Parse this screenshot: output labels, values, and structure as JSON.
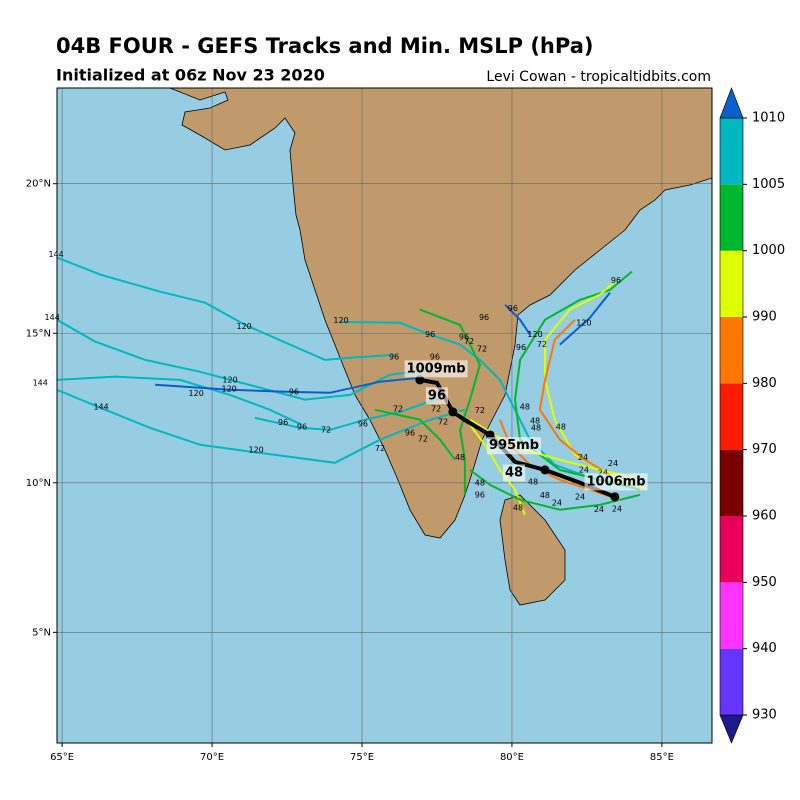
{
  "chart_data": {
    "type": "map",
    "title": "04B FOUR - GEFS Tracks and Min. MSLP (hPa)",
    "subtitle": "Initialized at 06z Nov 23 2020",
    "credit": "Levi Cowan - tropicaltidbits.com",
    "xlim": [
      64.83,
      86.67
    ],
    "ylim": [
      1.3,
      23.2
    ],
    "xticks": [
      {
        "value": 65,
        "label": "65°E"
      },
      {
        "value": 70,
        "label": "70°E"
      },
      {
        "value": 75,
        "label": "75°E"
      },
      {
        "value": 80,
        "label": "80°E"
      },
      {
        "value": 85,
        "label": "85°E"
      }
    ],
    "yticks": [
      {
        "value": 5,
        "label": "5°N"
      },
      {
        "value": 10,
        "label": "10°N"
      },
      {
        "value": 15,
        "label": "15°N"
      },
      {
        "value": 20,
        "label": "20°N"
      }
    ],
    "grid": true,
    "tracks": [
      {
        "color": "#00b8c0",
        "lon": [
          64.83,
          66.27,
          68.27,
          69.77,
          71.1,
          72.6,
          73.77,
          74.6,
          76.1
        ],
        "lat": [
          17.53,
          16.96,
          16.39,
          16.02,
          15.28,
          14.62,
          14.11,
          14.18,
          14.28
        ]
      },
      {
        "color": "#00b8c0",
        "lon": [
          64.83,
          66.1,
          67.77,
          69.6,
          71.6,
          73.1,
          74.6,
          75.93,
          77.27
        ],
        "lat": [
          15.45,
          14.72,
          14.11,
          13.71,
          13.18,
          12.78,
          12.94,
          13.61,
          13.78
        ]
      },
      {
        "color": "#00b8c0",
        "lon": [
          64.83,
          66.77,
          68.93,
          70.6,
          71.93,
          73.0
        ],
        "lat": [
          13.44,
          13.55,
          13.44,
          12.94,
          12.44,
          11.94
        ]
      },
      {
        "color": "#00b8c0",
        "lon": [
          64.83,
          66.27,
          67.93,
          69.6,
          71.6,
          74.1,
          75.6,
          77.27,
          78.43
        ],
        "lat": [
          13.11,
          12.51,
          11.84,
          11.27,
          11.0,
          10.67,
          11.44,
          12.11,
          12.44
        ]
      },
      {
        "color": "#0a5fcc",
        "lon": [
          68.1,
          70.6,
          72.6,
          73.93,
          75.6,
          76.93
        ],
        "lat": [
          13.28,
          13.11,
          13.04,
          13.01,
          13.38,
          13.51
        ]
      },
      {
        "color": "#00b8c0",
        "lon": [
          71.43,
          72.93,
          73.93,
          75.1,
          76.27,
          77.6
        ],
        "lat": [
          12.17,
          11.84,
          11.77,
          12.11,
          12.37,
          12.84
        ]
      },
      {
        "color": "#00b8c0",
        "lon": [
          74.27,
          76.27,
          77.27,
          78.27,
          78.93,
          79.6,
          80.1,
          80.6,
          81.43,
          82.6,
          83.93
        ],
        "lat": [
          15.38,
          15.35,
          14.95,
          14.62,
          14.11,
          13.44,
          12.44,
          11.44,
          10.6,
          10.17,
          9.87
        ]
      },
      {
        "color": "#00b82e",
        "lon": [
          84.0,
          83.27,
          82.27,
          81.1,
          80.27,
          80.1,
          80.27,
          81.6,
          82.93,
          84.27
        ],
        "lat": [
          17.06,
          16.45,
          16.12,
          15.45,
          14.11,
          12.78,
          11.44,
          10.43,
          10.1,
          9.77
        ]
      },
      {
        "color": "#ddff00",
        "lon": [
          83.43,
          82.93,
          81.93,
          81.1,
          81.1,
          81.43,
          82.1,
          83.27,
          84.43
        ],
        "lat": [
          16.72,
          16.29,
          15.79,
          14.78,
          13.44,
          12.11,
          10.94,
          10.27,
          9.83
        ]
      },
      {
        "color": "#ff7700",
        "lon": [
          82.1,
          81.43,
          81.1,
          80.93,
          81.6,
          82.43,
          83.27
        ],
        "lat": [
          15.45,
          14.78,
          13.44,
          12.44,
          11.44,
          10.77,
          10.27
        ]
      },
      {
        "color": "#00b82e",
        "lon": [
          76.93,
          78.27,
          78.6,
          78.93,
          78.6,
          78.27,
          78.43,
          78.43
        ],
        "lat": [
          15.79,
          15.28,
          14.62,
          13.95,
          12.78,
          11.77,
          10.77,
          9.6
        ]
      },
      {
        "color": "#ddff00",
        "lon": [
          80.43,
          80.1,
          79.6,
          79.1,
          78.6,
          78.1
        ],
        "lat": [
          8.93,
          9.77,
          10.43,
          11.27,
          11.94,
          12.44
        ]
      },
      {
        "color": "#00b82e",
        "lon": [
          84.27,
          82.93,
          81.6,
          80.27,
          79.27,
          78.6
        ],
        "lat": [
          9.6,
          9.26,
          9.1,
          9.43,
          9.93,
          10.43
        ]
      },
      {
        "color": "#ff7700",
        "lon": [
          83.6,
          82.6,
          81.6,
          80.6,
          79.93,
          79.6
        ],
        "lat": [
          9.43,
          9.77,
          10.1,
          10.6,
          11.27,
          12.11
        ]
      },
      {
        "color": "#0a5fcc",
        "lon": [
          79.77,
          80.27,
          80.6
        ],
        "lat": [
          15.95,
          15.45,
          14.95
        ]
      },
      {
        "color": "#0a5fcc",
        "lon": [
          81.6,
          82.6,
          83.27
        ],
        "lat": [
          14.62,
          15.52,
          16.36
        ]
      },
      {
        "color": "#00b82e",
        "lon": [
          75.43,
          76.93,
          77.6,
          78.1
        ],
        "lat": [
          12.44,
          12.11,
          11.44,
          10.77
        ]
      },
      {
        "color": "#ddff00",
        "lon": [
          84.1,
          82.93,
          81.6,
          80.43,
          79.43,
          78.6
        ],
        "lat": [
          10.17,
          10.43,
          10.77,
          11.1,
          11.6,
          12.11
        ]
      }
    ],
    "mean_track": {
      "color": "#000000",
      "lon": [
        83.43,
        82.27,
        81.1,
        80.1,
        79.27,
        78.43,
        78.03,
        77.5,
        76.93
      ],
      "lat": [
        9.53,
        10.0,
        10.43,
        10.7,
        11.6,
        12.1,
        12.37,
        13.34,
        13.44
      ]
    },
    "hour_labels": [
      {
        "text": 144,
        "lon": 64.8,
        "lat": 17.63
      },
      {
        "text": 144,
        "lon": 64.67,
        "lat": 15.52
      },
      {
        "text": 144,
        "lon": 64.27,
        "lat": 13.34
      },
      {
        "text": 144,
        "lon": 66.3,
        "lat": 12.54
      },
      {
        "text": 120,
        "lon": 71.07,
        "lat": 15.22
      },
      {
        "text": 120,
        "lon": 74.3,
        "lat": 15.42
      },
      {
        "text": 120,
        "lon": 70.6,
        "lat": 13.44
      },
      {
        "text": 120,
        "lon": 70.57,
        "lat": 13.14
      },
      {
        "text": 120,
        "lon": 69.47,
        "lat": 12.98
      },
      {
        "text": 120,
        "lon": 71.47,
        "lat": 11.1
      },
      {
        "text": 120,
        "lon": 80.77,
        "lat": 14.95
      },
      {
        "text": 120,
        "lon": 82.4,
        "lat": 15.35
      },
      {
        "text": 96,
        "lon": 76.07,
        "lat": 14.21
      },
      {
        "text": 96,
        "lon": 77.43,
        "lat": 14.21
      },
      {
        "text": 96,
        "lon": 77.27,
        "lat": 14.95
      },
      {
        "text": 96,
        "lon": 78.4,
        "lat": 14.88
      },
      {
        "text": 96,
        "lon": 79.07,
        "lat": 15.52
      },
      {
        "text": 96,
        "lon": 80.03,
        "lat": 15.82
      },
      {
        "text": 96,
        "lon": 83.47,
        "lat": 16.76
      },
      {
        "text": 96,
        "lon": 72.73,
        "lat": 13.04
      },
      {
        "text": 96,
        "lon": 72.37,
        "lat": 12.01
      },
      {
        "text": 96,
        "lon": 73.0,
        "lat": 11.87
      },
      {
        "text": 96,
        "lon": 75.03,
        "lat": 11.97
      },
      {
        "text": 96,
        "lon": 76.6,
        "lat": 11.67
      },
      {
        "text": 96,
        "lon": 78.93,
        "lat": 9.6
      },
      {
        "text": 96,
        "lon": 80.3,
        "lat": 14.52
      },
      {
        "text": 72,
        "lon": 78.57,
        "lat": 14.72
      },
      {
        "text": 72,
        "lon": 79.0,
        "lat": 14.48
      },
      {
        "text": 72,
        "lon": 81.0,
        "lat": 14.62
      },
      {
        "text": 72,
        "lon": 73.8,
        "lat": 11.77
      },
      {
        "text": 72,
        "lon": 75.6,
        "lat": 11.14
      },
      {
        "text": 72,
        "lon": 76.2,
        "lat": 12.47
      },
      {
        "text": 72,
        "lon": 77.47,
        "lat": 12.47
      },
      {
        "text": 72,
        "lon": 77.7,
        "lat": 12.04
      },
      {
        "text": 72,
        "lon": 78.93,
        "lat": 12.41
      },
      {
        "text": 72,
        "lon": 77.03,
        "lat": 11.47
      },
      {
        "text": 48,
        "lon": 80.43,
        "lat": 12.54
      },
      {
        "text": 48,
        "lon": 80.77,
        "lat": 12.07
      },
      {
        "text": 48,
        "lon": 80.8,
        "lat": 11.84
      },
      {
        "text": 48,
        "lon": 81.63,
        "lat": 11.87
      },
      {
        "text": 48,
        "lon": 78.93,
        "lat": 10.0
      },
      {
        "text": 48,
        "lon": 80.7,
        "lat": 10.03
      },
      {
        "text": 48,
        "lon": 81.1,
        "lat": 9.57
      },
      {
        "text": 48,
        "lon": 80.2,
        "lat": 9.16
      },
      {
        "text": 48,
        "lon": 78.27,
        "lat": 10.84
      },
      {
        "text": 24,
        "lon": 82.37,
        "lat": 10.84
      },
      {
        "text": 24,
        "lon": 83.37,
        "lat": 10.64
      },
      {
        "text": 24,
        "lon": 83.03,
        "lat": 10.33
      },
      {
        "text": 24,
        "lon": 82.27,
        "lat": 9.53
      },
      {
        "text": 24,
        "lon": 81.5,
        "lat": 9.33
      },
      {
        "text": 24,
        "lon": 82.9,
        "lat": 9.1
      },
      {
        "text": 24,
        "lon": 83.5,
        "lat": 9.13
      },
      {
        "text": 24,
        "lon": 82.4,
        "lat": 10.43
      }
    ],
    "annotations": [
      {
        "text": "1009mb",
        "lon": 77.47,
        "lat": 13.81
      },
      {
        "text": "96",
        "lon": 77.5,
        "lat": 12.91
      },
      {
        "text": "995mb",
        "lon": 80.07,
        "lat": 11.24
      },
      {
        "text": "48",
        "lon": 80.07,
        "lat": 10.33
      },
      {
        "text": "1006mb",
        "lon": 83.47,
        "lat": 10.03
      }
    ],
    "colorbar": {
      "levels": [
        930,
        940,
        950,
        960,
        970,
        980,
        990,
        1000,
        1005,
        1010
      ],
      "colors": [
        "#1a1a8c",
        "#6633ff",
        "#ff33ff",
        "#e8005a",
        "#7a0000",
        "#ff1a00",
        "#ff7700",
        "#ddff00",
        "#00b82e",
        "#00b8c0",
        "#0a5fcc"
      ]
    }
  }
}
